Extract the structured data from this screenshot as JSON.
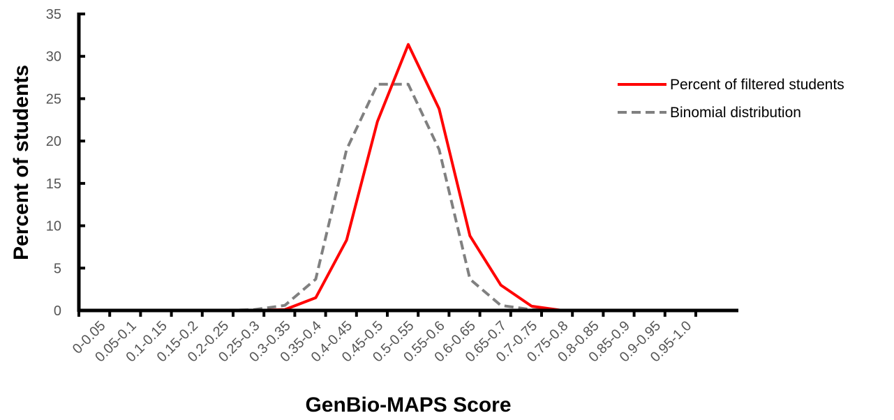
{
  "chart_data": {
    "type": "line",
    "title": "",
    "xlabel": "GenBio-MAPS Score",
    "ylabel": "Percent of students",
    "ylim": [
      0,
      35
    ],
    "yticks": [
      0,
      5,
      10,
      15,
      20,
      25,
      30,
      35
    ],
    "categories": [
      "0-0.05",
      "0.05-0.1",
      "0.1-0.15",
      "0.15-0.2",
      "0.2-0.25",
      "0.25-0.3",
      "0.3-0.35",
      "0.35-0.4",
      "0.4-0.45",
      "0.45-0.5",
      "0.5-0.55",
      "0.55-0.6",
      "0.6-0.65",
      "0.65-0.7",
      "0.7-0.75",
      "0.75-0.8",
      "0.8-0.85",
      "0.85-0.9",
      "0.9-0.95",
      "0.95-1.0"
    ],
    "series": [
      {
        "name": "Percent of filtered students",
        "color": "#ff0000",
        "style": "solid",
        "values": [
          0,
          0,
          0,
          0,
          0,
          0,
          0.1,
          1.5,
          8.3,
          22.3,
          31.4,
          23.8,
          8.8,
          3.0,
          0.5,
          0,
          0,
          0,
          0,
          0
        ]
      },
      {
        "name": "Binomial distribution",
        "color": "#808080",
        "style": "dashed",
        "values": [
          0,
          0,
          0,
          0,
          0,
          0.1,
          0.6,
          3.7,
          19.0,
          26.7,
          26.7,
          19.0,
          3.7,
          0.6,
          0.1,
          0,
          0,
          0,
          0,
          0
        ]
      }
    ],
    "grid": false,
    "legend_position": "right"
  }
}
